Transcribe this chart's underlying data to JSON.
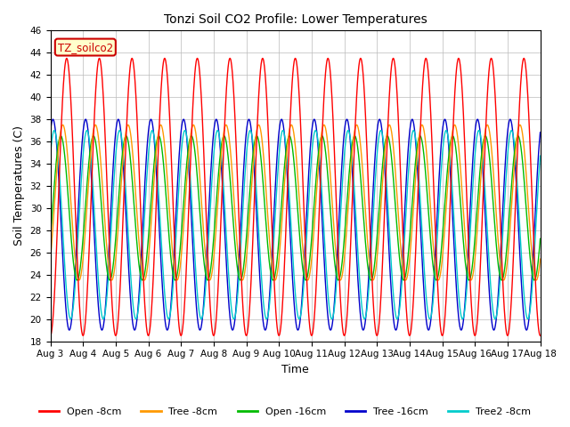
{
  "title": "Tonzi Soil CO2 Profile: Lower Temperatures",
  "xlabel": "Time",
  "ylabel": "Soil Temperatures (C)",
  "ylim": [
    18,
    46
  ],
  "yticks": [
    18,
    20,
    22,
    24,
    26,
    28,
    30,
    32,
    34,
    36,
    38,
    40,
    42,
    44,
    46
  ],
  "legend_label": "TZ_soilco2",
  "series": [
    {
      "label": "Open -8cm",
      "color": "#ff0000"
    },
    {
      "label": "Tree -8cm",
      "color": "#ff9900"
    },
    {
      "label": "Open -16cm",
      "color": "#00bb00"
    },
    {
      "label": "Tree -16cm",
      "color": "#0000cc"
    },
    {
      "label": "Tree2 -8cm",
      "color": "#00cccc"
    }
  ],
  "n_points": 1500,
  "x_start": 3,
  "x_end": 18,
  "period": 1.0,
  "amplitudes": [
    12.5,
    7.0,
    6.5,
    9.5,
    8.5
  ],
  "offsets": [
    31.0,
    30.5,
    30.0,
    28.5,
    28.5
  ],
  "phase_shifts": [
    0.0,
    0.12,
    0.18,
    0.42,
    0.38
  ],
  "x_tick_labels": [
    "Aug 3",
    "Aug 4",
    "Aug 5",
    "Aug 6",
    "Aug 7",
    "Aug 8",
    "Aug 9",
    "Aug 10",
    "Aug 11",
    "Aug 12",
    "Aug 13",
    "Aug 14",
    "Aug 15",
    "Aug 16",
    "Aug 17",
    "Aug 18"
  ],
  "x_ticks": [
    3,
    4,
    5,
    6,
    7,
    8,
    9,
    10,
    11,
    12,
    13,
    14,
    15,
    16,
    17,
    18
  ],
  "background_color": "#ffffff",
  "grid_color": "#bbbbbb",
  "title_fontsize": 10,
  "axis_fontsize": 9,
  "tick_fontsize": 7.5,
  "legend_fontsize": 8
}
